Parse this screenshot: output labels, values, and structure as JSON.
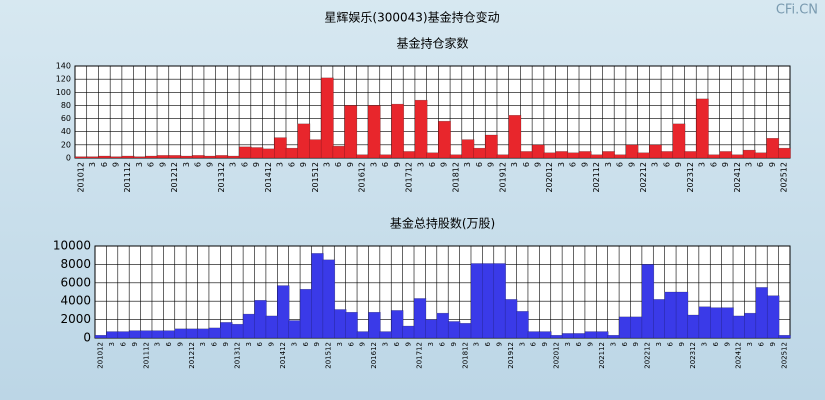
{
  "title": "星辉娱乐(300043)基金持仓变动",
  "watermark": "CFi.CN",
  "chart_data": [
    {
      "type": "bar",
      "title": "基金持仓家数",
      "categories": [
        "201012",
        "3",
        "6",
        "9",
        "201112",
        "3",
        "6",
        "9",
        "201212",
        "3",
        "6",
        "9",
        "201312",
        "3",
        "6",
        "9",
        "201412",
        "3",
        "6",
        "9",
        "201512",
        "3",
        "6",
        "9",
        "201612",
        "3",
        "6",
        "9",
        "201712",
        "3",
        "6",
        "9",
        "201812",
        "3",
        "6",
        "9",
        "201912",
        "3",
        "6",
        "9",
        "202012",
        "3",
        "6",
        "9",
        "202112",
        "3",
        "6",
        "9",
        "202212",
        "3",
        "6",
        "9",
        "202312",
        "3",
        "6",
        "9",
        "202412",
        "3",
        "6",
        "9",
        "202512"
      ],
      "values": [
        2,
        2,
        3,
        2,
        3,
        2,
        3,
        4,
        4,
        3,
        4,
        3,
        4,
        3,
        17,
        16,
        14,
        31,
        15,
        52,
        28,
        122,
        18,
        80,
        5,
        80,
        5,
        82,
        10,
        88,
        8,
        56,
        5,
        28,
        15,
        35,
        5,
        65,
        10,
        20,
        8,
        10,
        8,
        10,
        5,
        10,
        5,
        20,
        8,
        20,
        10,
        52,
        10,
        90,
        5,
        10,
        5,
        12,
        8,
        30,
        15
      ],
      "color": "#e8262c",
      "ylim": [
        0,
        140
      ],
      "yticks": [
        0,
        20,
        40,
        60,
        80,
        100,
        120,
        140
      ],
      "grid": true
    },
    {
      "type": "bar",
      "title": "基金总持股数(万股)",
      "categories": [
        "201012",
        "3",
        "6",
        "9",
        "201112",
        "3",
        "6",
        "9",
        "201212",
        "3",
        "6",
        "9",
        "201312",
        "3",
        "6",
        "9",
        "201412",
        "3",
        "6",
        "9",
        "201512",
        "3",
        "6",
        "9",
        "201612",
        "3",
        "6",
        "9",
        "201712",
        "3",
        "6",
        "9",
        "201812",
        "3",
        "6",
        "9",
        "201912",
        "3",
        "6",
        "9",
        "202012",
        "3",
        "6",
        "9",
        "202112",
        "3",
        "6",
        "9",
        "202212",
        "3",
        "6",
        "9",
        "202312",
        "3",
        "6",
        "9",
        "202412",
        "3",
        "6",
        "9",
        "202512"
      ],
      "values": [
        300,
        700,
        700,
        800,
        800,
        800,
        800,
        1000,
        1000,
        1000,
        1100,
        1700,
        1500,
        2600,
        4100,
        2400,
        5700,
        1900,
        5300,
        9200,
        8500,
        3100,
        2800,
        700,
        2800,
        700,
        3000,
        1300,
        4300,
        2000,
        2700,
        1800,
        1600,
        8100,
        8100,
        8100,
        4200,
        2900,
        700,
        700,
        300,
        500,
        500,
        700,
        700,
        300,
        2300,
        2300,
        8000,
        4200,
        5000,
        5000,
        2500,
        3400,
        3300,
        3300,
        2400,
        2700,
        5500,
        4600,
        300
      ],
      "color": "#3a3ae8",
      "ylim": [
        0,
        10000
      ],
      "yticks": [
        0,
        2000,
        4000,
        6000,
        8000,
        10000
      ],
      "grid": true
    }
  ]
}
